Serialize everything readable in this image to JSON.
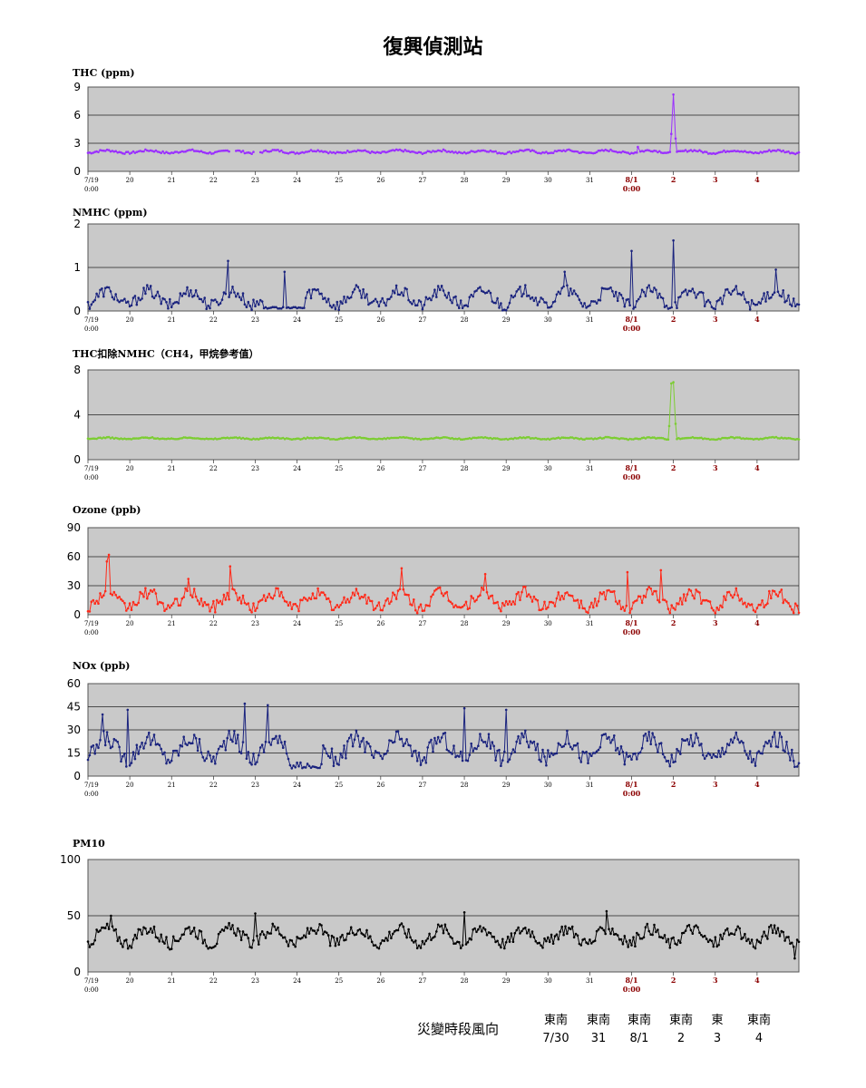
{
  "page_title": "復興偵測站",
  "wind": {
    "label": "災變時段風向",
    "directions": [
      "東南",
      "東南",
      "東南",
      "東南",
      "東",
      "東南"
    ],
    "dates": [
      "7/30",
      "31",
      "8/1",
      "2",
      "3",
      "4"
    ]
  },
  "chart_data": [
    {
      "type": "line",
      "title": "THC (ppm)",
      "color": "#9b30ff",
      "ylim": [
        0,
        9
      ],
      "yticks": [
        0,
        3,
        6,
        9
      ],
      "grid": true,
      "xticks": [
        "7/19\n0:00",
        "20",
        "21",
        "22",
        "23",
        "24",
        "25",
        "26",
        "27",
        "28",
        "29",
        "30",
        "31",
        "8/1\n0:00",
        "2",
        "3",
        "4"
      ],
      "x_unit": "day since 7/19 0:00",
      "baseline": 2.1,
      "amplitude": 0.25,
      "gaps": [
        [
          3.4,
          3.5
        ],
        [
          4.0,
          4.1
        ]
      ],
      "spikes": [
        [
          13.15,
          2.6
        ],
        [
          13.95,
          4.0
        ],
        [
          14.0,
          8.2
        ],
        [
          14.05,
          3.5
        ]
      ]
    },
    {
      "type": "line",
      "title": "NMHC (ppm)",
      "color": "#1a237e",
      "ylim": [
        0,
        2
      ],
      "yticks": [
        0,
        1,
        2
      ],
      "grid": true,
      "xticks": [
        "7/19\n0:00",
        "20",
        "21",
        "22",
        "23",
        "24",
        "25",
        "26",
        "27",
        "28",
        "29",
        "30",
        "31",
        "8/1\n0:00",
        "2",
        "3",
        "4"
      ],
      "x_unit": "day since 7/19 0:00",
      "baseline": 0.3,
      "amplitude": 0.3,
      "lowrun": [
        [
          4.2,
          5.2,
          0.05
        ]
      ],
      "spikes": [
        [
          3.35,
          1.15
        ],
        [
          4.7,
          0.9
        ],
        [
          13.0,
          1.38
        ],
        [
          14.0,
          1.62
        ],
        [
          16.45,
          0.95
        ],
        [
          11.4,
          0.9
        ]
      ]
    },
    {
      "type": "line",
      "title": "THC扣除NMHC（CH4，甲烷參考值）",
      "color": "#7ccd32",
      "ylim": [
        0,
        8
      ],
      "yticks": [
        0,
        4,
        8
      ],
      "grid": true,
      "xticks": [
        "7/19\n0:00",
        "20",
        "21",
        "22",
        "23",
        "24",
        "25",
        "26",
        "27",
        "28",
        "29",
        "30",
        "31",
        "8/1\n0:00",
        "2",
        "3",
        "4"
      ],
      "x_unit": "day since 7/19 0:00",
      "baseline": 1.9,
      "amplitude": 0.12,
      "spikes": [
        [
          13.9,
          3.0
        ],
        [
          13.95,
          6.8
        ],
        [
          14.0,
          6.9
        ],
        [
          14.05,
          3.2
        ]
      ]
    },
    {
      "type": "line",
      "title": "Ozone (ppb)",
      "color": "#ff2a1a",
      "ylim": [
        0,
        90
      ],
      "yticks": [
        0,
        30,
        60,
        90
      ],
      "grid": true,
      "xticks": [
        "7/19\n0:00",
        "20",
        "21",
        "22",
        "23",
        "24",
        "25",
        "26",
        "27",
        "28",
        "29",
        "30",
        "31",
        "8/1\n0:00",
        "2",
        "3",
        "4"
      ],
      "x_unit": "day since 7/19 0:00",
      "baseline": 15,
      "amplitude": 14,
      "spikes": [
        [
          0.5,
          62
        ],
        [
          0.45,
          55
        ],
        [
          2.4,
          37
        ],
        [
          3.4,
          50
        ],
        [
          7.5,
          48
        ],
        [
          9.5,
          42
        ],
        [
          12.9,
          44
        ],
        [
          13.7,
          46
        ]
      ]
    },
    {
      "type": "line",
      "title": "NOx (ppb)",
      "color": "#1a237e",
      "ylim": [
        0,
        60
      ],
      "yticks": [
        0,
        15,
        30,
        45,
        60
      ],
      "grid": true,
      "xticks": [
        "7/19\n0:00",
        "20",
        "21",
        "22",
        "23",
        "24",
        "25",
        "26",
        "27",
        "28",
        "29",
        "30",
        "31",
        "8/1\n0:00",
        "2",
        "3",
        "4"
      ],
      "x_unit": "day since 7/19 0:00",
      "baseline": 18,
      "amplitude": 12,
      "lowrun": [
        [
          4.8,
          5.6,
          5
        ]
      ],
      "spikes": [
        [
          0.35,
          40
        ],
        [
          0.95,
          43
        ],
        [
          3.75,
          47
        ],
        [
          4.3,
          46
        ],
        [
          9.0,
          44
        ],
        [
          10.0,
          43
        ],
        [
          16.9,
          6
        ]
      ]
    },
    {
      "type": "line",
      "title": "PM10",
      "color": "#000000",
      "ylim": [
        0,
        100
      ],
      "yticks": [
        0,
        50,
        100
      ],
      "grid": true,
      "xticks": [
        "7/19\n0:00",
        "20",
        "21",
        "22",
        "23",
        "24",
        "25",
        "26",
        "27",
        "28",
        "29",
        "30",
        "31",
        "8/1\n0:00",
        "2",
        "3",
        "4"
      ],
      "x_unit": "day since 7/19 0:00",
      "baseline": 32,
      "amplitude": 12,
      "spikes": [
        [
          0.55,
          50
        ],
        [
          4.0,
          52
        ],
        [
          9.0,
          53
        ],
        [
          12.4,
          54
        ],
        [
          15.4,
          34
        ],
        [
          16.9,
          12
        ]
      ]
    }
  ]
}
